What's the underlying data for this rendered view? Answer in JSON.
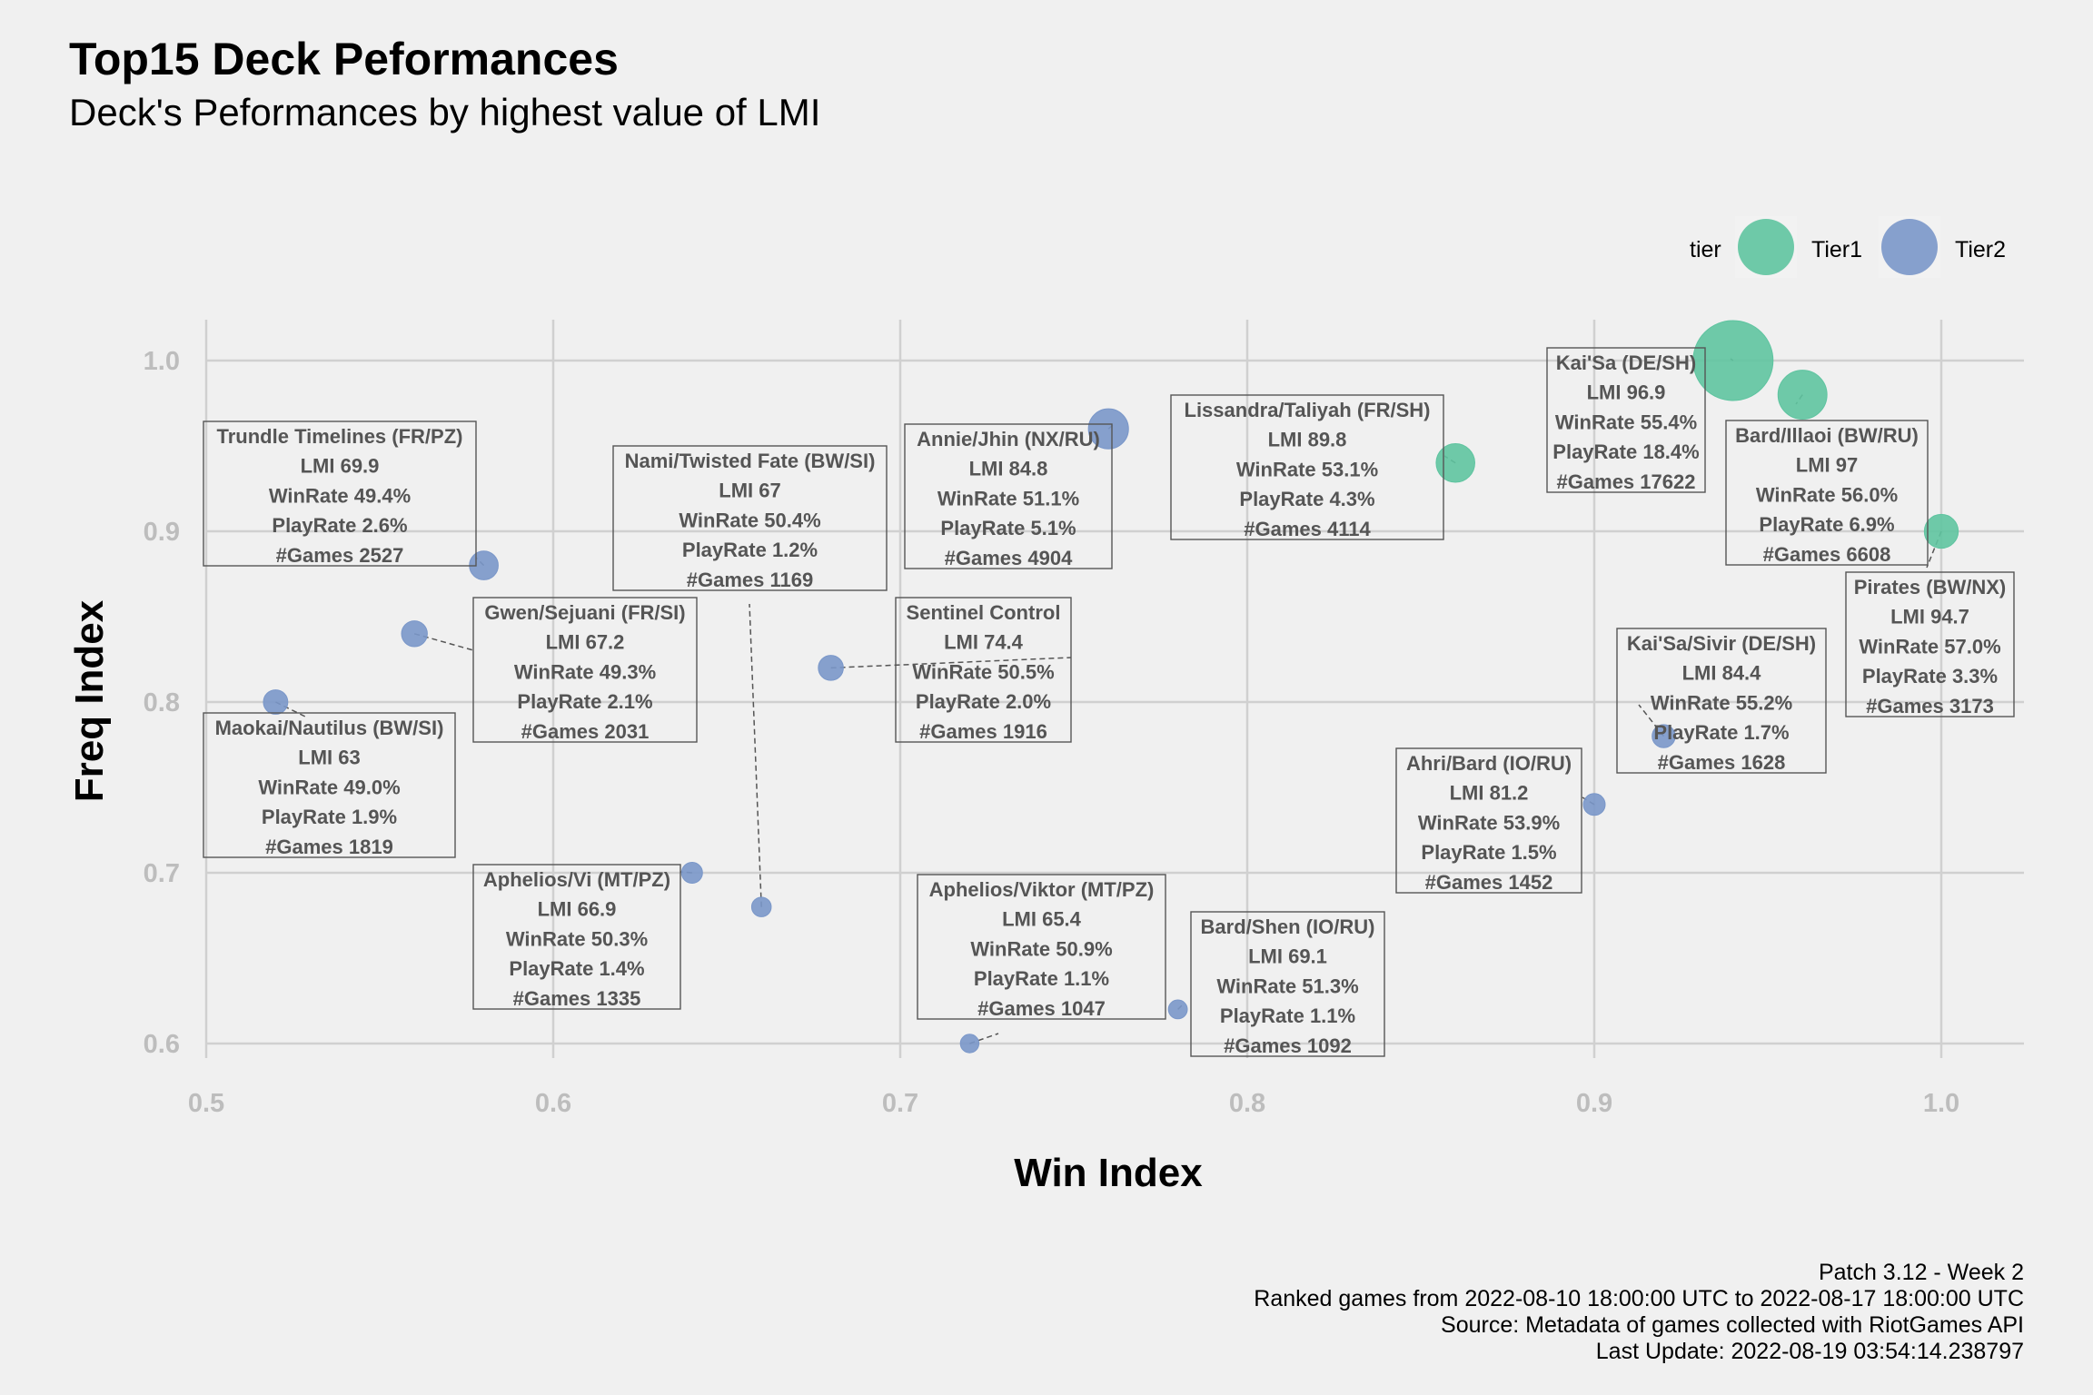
{
  "colors": {
    "tier1": "#5fc4a0",
    "tier2": "#7a97c9",
    "background": "#f0f0f0",
    "grid": "#d0d0d0",
    "label": "#555555"
  },
  "chart_data": {
    "type": "scatter",
    "title": "Top15 Deck Peformances",
    "subtitle": "Deck's Peformances by highest value of LMI",
    "xlabel": "Win Index",
    "ylabel": "Freq Index",
    "xlim": [
      0.5,
      1.0
    ],
    "ylim": [
      0.6,
      1.0
    ],
    "xticks": [
      "0.5",
      "0.6",
      "0.7",
      "0.8",
      "0.9",
      "1.0"
    ],
    "yticks": [
      "0.6",
      "0.7",
      "0.8",
      "0.9",
      "1.0"
    ],
    "grid": true,
    "legend": {
      "title": "tier",
      "position": "top-right",
      "entries": [
        "Tier1",
        "Tier2"
      ]
    },
    "size_variable": "#Games",
    "points": [
      {
        "deck": "Kai'Sa (DE/SH)",
        "tier": "Tier1",
        "x": 0.94,
        "y": 1.0,
        "lmi": "96.9",
        "winrate": "55.4%",
        "playrate": "18.4%",
        "games": "17622"
      },
      {
        "deck": "Bard/Illaoi (BW/RU)",
        "tier": "Tier1",
        "x": 0.96,
        "y": 0.98,
        "lmi": "97",
        "winrate": "56.0%",
        "playrate": "6.9%",
        "games": "6608"
      },
      {
        "deck": "Pirates (BW/NX)",
        "tier": "Tier1",
        "x": 1.0,
        "y": 0.9,
        "lmi": "94.7",
        "winrate": "57.0%",
        "playrate": "3.3%",
        "games": "3173"
      },
      {
        "deck": "Lissandra/Taliyah (FR/SH)",
        "tier": "Tier1",
        "x": 0.86,
        "y": 0.94,
        "lmi": "89.8",
        "winrate": "53.1%",
        "playrate": "4.3%",
        "games": "4114"
      },
      {
        "deck": "Annie/Jhin (NX/RU)",
        "tier": "Tier2",
        "x": 0.76,
        "y": 0.96,
        "lmi": "84.8",
        "winrate": "51.1%",
        "playrate": "5.1%",
        "games": "4904"
      },
      {
        "deck": "Kai'Sa/Sivir (DE/SH)",
        "tier": "Tier2",
        "x": 0.92,
        "y": 0.78,
        "lmi": "84.4",
        "winrate": "55.2%",
        "playrate": "1.7%",
        "games": "1628"
      },
      {
        "deck": "Ahri/Bard (IO/RU)",
        "tier": "Tier2",
        "x": 0.9,
        "y": 0.74,
        "lmi": "81.2",
        "winrate": "53.9%",
        "playrate": "1.5%",
        "games": "1452"
      },
      {
        "deck": "Sentinel Control",
        "tier": "Tier2",
        "x": 0.68,
        "y": 0.82,
        "lmi": "74.4",
        "winrate": "50.5%",
        "playrate": "2.0%",
        "games": "1916"
      },
      {
        "deck": "Trundle Timelines (FR/PZ)",
        "tier": "Tier2",
        "x": 0.58,
        "y": 0.88,
        "lmi": "69.9",
        "winrate": "49.4%",
        "playrate": "2.6%",
        "games": "2527"
      },
      {
        "deck": "Bard/Shen (IO/RU)",
        "tier": "Tier2",
        "x": 0.78,
        "y": 0.62,
        "lmi": "69.1",
        "winrate": "51.3%",
        "playrate": "1.1%",
        "games": "1092"
      },
      {
        "deck": "Gwen/Sejuani (FR/SI)",
        "tier": "Tier2",
        "x": 0.56,
        "y": 0.84,
        "lmi": "67.2",
        "winrate": "49.3%",
        "playrate": "2.1%",
        "games": "2031"
      },
      {
        "deck": "Nami/Twisted Fate (BW/SI)",
        "tier": "Tier2",
        "x": 0.66,
        "y": 0.68,
        "lmi": "67",
        "winrate": "50.4%",
        "playrate": "1.2%",
        "games": "1169"
      },
      {
        "deck": "Aphelios/Vi (MT/PZ)",
        "tier": "Tier2",
        "x": 0.64,
        "y": 0.7,
        "lmi": "66.9",
        "winrate": "50.3%",
        "playrate": "1.4%",
        "games": "1335"
      },
      {
        "deck": "Aphelios/Viktor (MT/PZ)",
        "tier": "Tier2",
        "x": 0.72,
        "y": 0.6,
        "lmi": "65.4",
        "winrate": "50.9%",
        "playrate": "1.1%",
        "games": "1047"
      },
      {
        "deck": "Maokai/Nautilus (BW/SI)",
        "tier": "Tier2",
        "x": 0.52,
        "y": 0.8,
        "lmi": "63",
        "winrate": "49.0%",
        "playrate": "1.9%",
        "games": "1819"
      }
    ],
    "caption": [
      "Patch 3.12 - Week 2",
      "Ranked games from 2022-08-10 18:00:00 UTC to 2022-08-17 18:00:00 UTC",
      "Source: Metadata of games collected with RiotGames API",
      "Last Update: 2022-08-19 03:54:14.238797"
    ]
  }
}
